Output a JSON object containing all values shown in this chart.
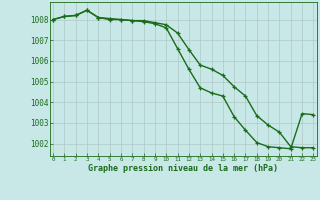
{
  "line1_x": [
    0,
    1,
    2,
    3,
    4,
    5,
    6,
    7,
    8,
    9,
    10,
    11,
    12,
    13,
    14,
    15,
    16,
    17,
    18,
    19,
    20,
    21,
    22,
    23
  ],
  "line1_y": [
    1008.0,
    1008.15,
    1008.2,
    1008.45,
    1008.1,
    1008.0,
    1008.0,
    1007.95,
    1007.95,
    1007.85,
    1007.75,
    1007.35,
    1006.55,
    1005.8,
    1005.6,
    1005.3,
    1004.75,
    1004.3,
    1003.35,
    1002.9,
    1002.55,
    1001.85,
    1001.8,
    1001.8
  ],
  "line2_x": [
    0,
    1,
    2,
    3,
    4,
    5,
    6,
    7,
    8,
    9,
    10,
    11,
    12,
    13,
    14,
    15,
    16,
    17,
    18,
    19,
    20,
    21,
    22,
    23
  ],
  "line2_y": [
    1008.0,
    1008.15,
    1008.2,
    1008.45,
    1008.1,
    1008.05,
    1008.0,
    1007.95,
    1007.9,
    1007.8,
    1007.6,
    1006.6,
    1005.6,
    1004.7,
    1004.45,
    1004.3,
    1003.3,
    1002.65,
    1002.05,
    1001.85,
    1001.8,
    1001.75,
    1003.45,
    1003.4
  ],
  "line_color": "#1a6b1a",
  "bg_color": "#c8e8e8",
  "grid_color": "#b0c8c8",
  "ylabel_ticks": [
    1002,
    1003,
    1004,
    1005,
    1006,
    1007,
    1008
  ],
  "xticks": [
    0,
    1,
    2,
    3,
    4,
    5,
    6,
    7,
    8,
    9,
    10,
    11,
    12,
    13,
    14,
    15,
    16,
    17,
    18,
    19,
    20,
    21,
    22,
    23
  ],
  "ylim": [
    1001.4,
    1008.85
  ],
  "xlim": [
    -0.3,
    23.3
  ],
  "xlabel": "Graphe pression niveau de la mer (hPa)",
  "marker": "+",
  "marker_size": 3.5,
  "line_width": 1.0
}
